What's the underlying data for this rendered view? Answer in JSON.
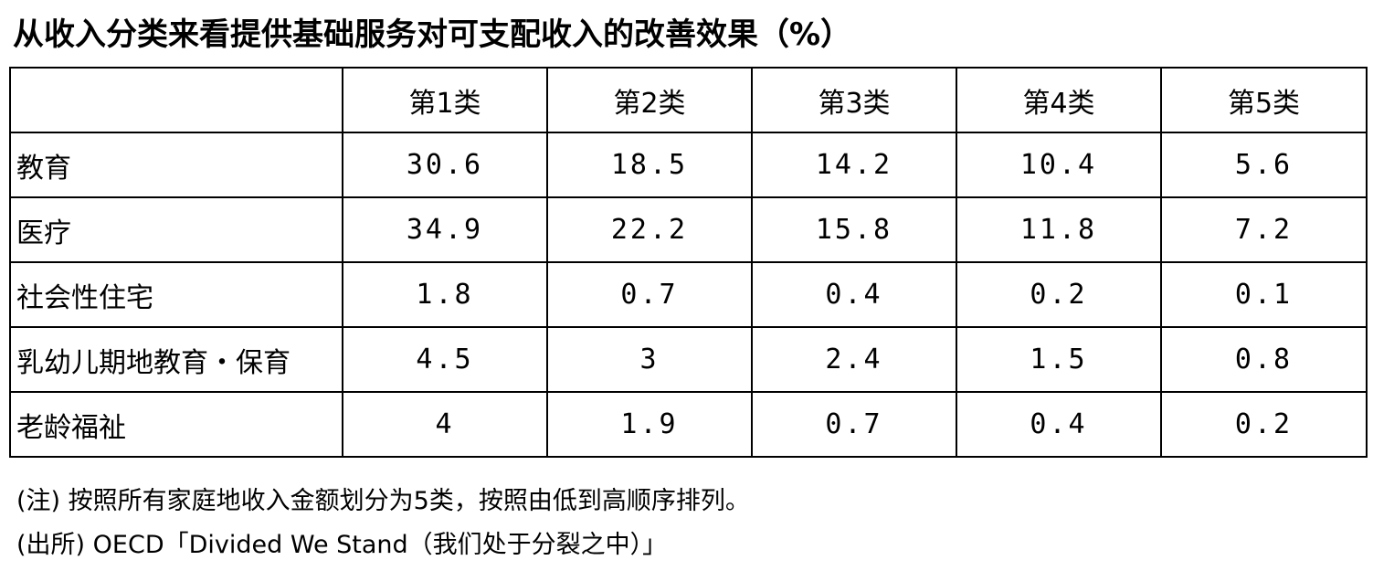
{
  "title": "从收入分类来看提供基础服务对可支配收入的改善效果（%）",
  "table": {
    "header": [
      "第1类",
      "第2类",
      "第3类",
      "第4类",
      "第5类"
    ],
    "rows": [
      [
        "教育",
        30.6,
        18.5,
        14.2,
        10.4,
        5.6
      ],
      [
        "医疗",
        34.9,
        22.2,
        15.8,
        11.8,
        7.2
      ],
      [
        "社会性住宅",
        1.8,
        0.7,
        0.4,
        0.2,
        0.1
      ],
      [
        "乳幼儿期地教育・保育",
        4.5,
        3,
        2.4,
        1.5,
        0.8
      ],
      [
        "老龄福祉",
        4,
        1.9,
        0.7,
        0.4,
        0.2
      ]
    ]
  },
  "notes": [
    "(注) 按照所有家庭地收入金额划分为5类，按照由低到高顺序排列。",
    "(出所) OECD「Divided We Stand（我们处于分裂之中）」"
  ]
}
